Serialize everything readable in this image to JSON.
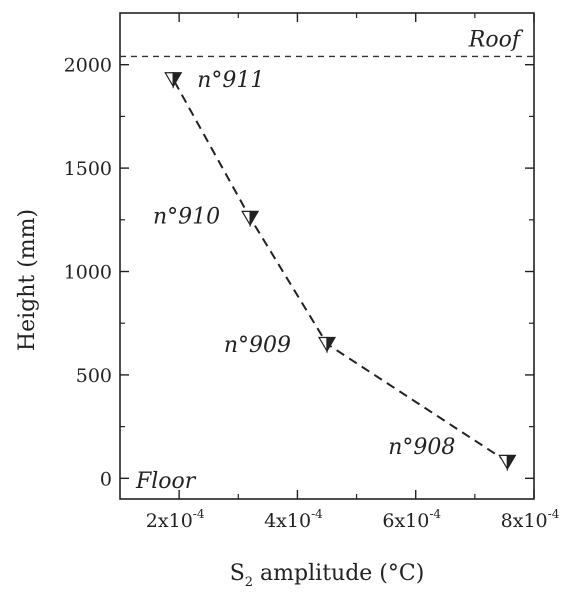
{
  "chart_data": {
    "type": "scatter",
    "title": "",
    "xlabel_main": "S",
    "xlabel_sub": "2",
    "xlabel_rest": " amplitude (°C)",
    "ylabel": "Height (mm)",
    "xlim": [
      0.0001,
      0.0008
    ],
    "ylim": [
      -100,
      2250
    ],
    "x_ticks": [
      {
        "value": 0.0002,
        "mantissa": "2x10",
        "exponent": "-4"
      },
      {
        "value": 0.0004,
        "mantissa": "4x10",
        "exponent": "-4"
      },
      {
        "value": 0.0006,
        "mantissa": "6x10",
        "exponent": "-4"
      },
      {
        "value": 0.0008,
        "mantissa": "8x10",
        "exponent": "-4"
      }
    ],
    "y_ticks": [
      {
        "value": 0,
        "label": "0"
      },
      {
        "value": 500,
        "label": "500"
      },
      {
        "value": 1000,
        "label": "1000"
      },
      {
        "value": 1500,
        "label": "1500"
      },
      {
        "value": 2000,
        "label": "2000"
      }
    ],
    "points": [
      {
        "label": "n°908",
        "x": 0.000755,
        "y": 80
      },
      {
        "label": "n°909",
        "x": 0.00045,
        "y": 650
      },
      {
        "label": "n°910",
        "x": 0.00032,
        "y": 1260
      },
      {
        "label": "n°911",
        "x": 0.00019,
        "y": 1930
      }
    ],
    "reference_lines": [
      {
        "label": "Roof",
        "y": 2040
      }
    ],
    "annotations": [
      {
        "text": "Floor"
      }
    ],
    "grid": false,
    "legend": "none"
  }
}
